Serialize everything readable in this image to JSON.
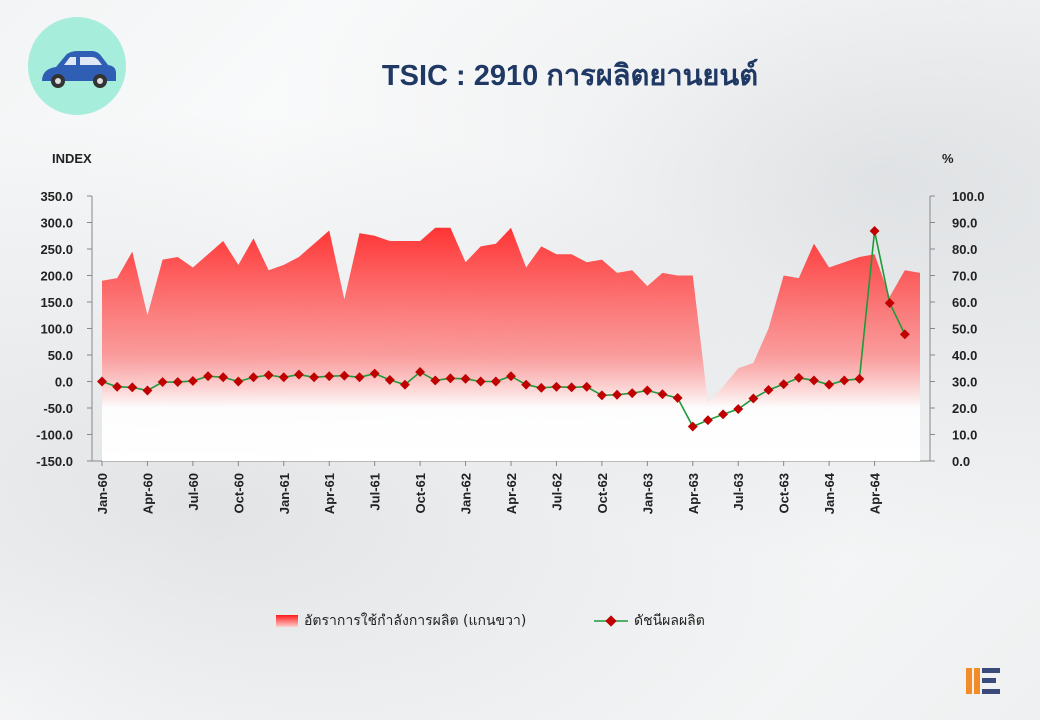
{
  "title": "TSIC : 2910 การผลิตยานยนต์",
  "icons": {
    "top_left": "car-icon",
    "bottom_right": "oie-logo"
  },
  "colors": {
    "area": "#ff1a1a",
    "line": "#1f9a3a",
    "marker": "#c00000",
    "title": "#1f3864"
  },
  "chart_data": {
    "type": "line",
    "left_axis_label": "INDEX",
    "right_axis_label": "%",
    "left_ylim": [
      -150,
      350
    ],
    "left_ticks": [
      "350.0",
      "300.0",
      "250.0",
      "200.0",
      "150.0",
      "100.0",
      "50.0",
      "0.0",
      "-50.0",
      "-100.0",
      "-150.0"
    ],
    "right_ylim": [
      0,
      100
    ],
    "right_ticks": [
      "100.0",
      "90.0",
      "80.0",
      "70.0",
      "60.0",
      "50.0",
      "40.0",
      "30.0",
      "20.0",
      "10.0",
      "0.0"
    ],
    "x_labels": [
      "Jan-60",
      "Apr-60",
      "Jul-60",
      "Oct-60",
      "Jan-61",
      "Apr-61",
      "Jul-61",
      "Oct-61",
      "Jan-62",
      "Apr-62",
      "Jul-62",
      "Oct-62",
      "Jan-63",
      "Apr-63",
      "Jul-63",
      "Oct-63",
      "Jan-64",
      "Apr-64"
    ],
    "series": [
      {
        "name": "อัตราการใช้กำลังการผลิต (แกนขวา)",
        "type": "area",
        "axis": "right",
        "values": [
          68,
          69,
          79,
          55,
          76,
          77,
          73,
          78,
          83,
          74,
          84,
          72,
          74,
          77,
          82,
          87,
          61,
          86,
          85,
          83,
          83,
          83,
          88,
          88,
          75,
          81,
          82,
          88,
          73,
          81,
          78,
          78,
          75,
          76,
          71,
          72,
          66,
          71,
          70,
          70,
          22,
          28,
          35,
          37,
          50,
          70,
          69,
          82,
          73,
          75,
          77,
          78,
          62,
          72,
          71
        ]
      },
      {
        "name": "ดัชนีผลผลิต",
        "type": "line",
        "axis": "left",
        "values": [
          0,
          -10,
          -11,
          -17,
          -1,
          -1,
          1,
          10,
          8,
          0,
          8,
          12,
          8,
          13,
          8,
          10,
          11,
          8,
          15,
          3,
          -6,
          18,
          2,
          6,
          5,
          0,
          0,
          10,
          -6,
          -12,
          -10,
          -11,
          -10,
          -26,
          -25,
          -22,
          -17,
          -24,
          -31,
          -85,
          -73,
          -62,
          -52,
          -32,
          -16,
          -5,
          7,
          2,
          -6,
          2,
          5,
          284,
          148,
          89
        ]
      }
    ]
  },
  "legend": {
    "area_label": "อัตราการใช้กำลังการผลิต (แกนขวา)",
    "line_label": "ดัชนีผลผลิต"
  }
}
